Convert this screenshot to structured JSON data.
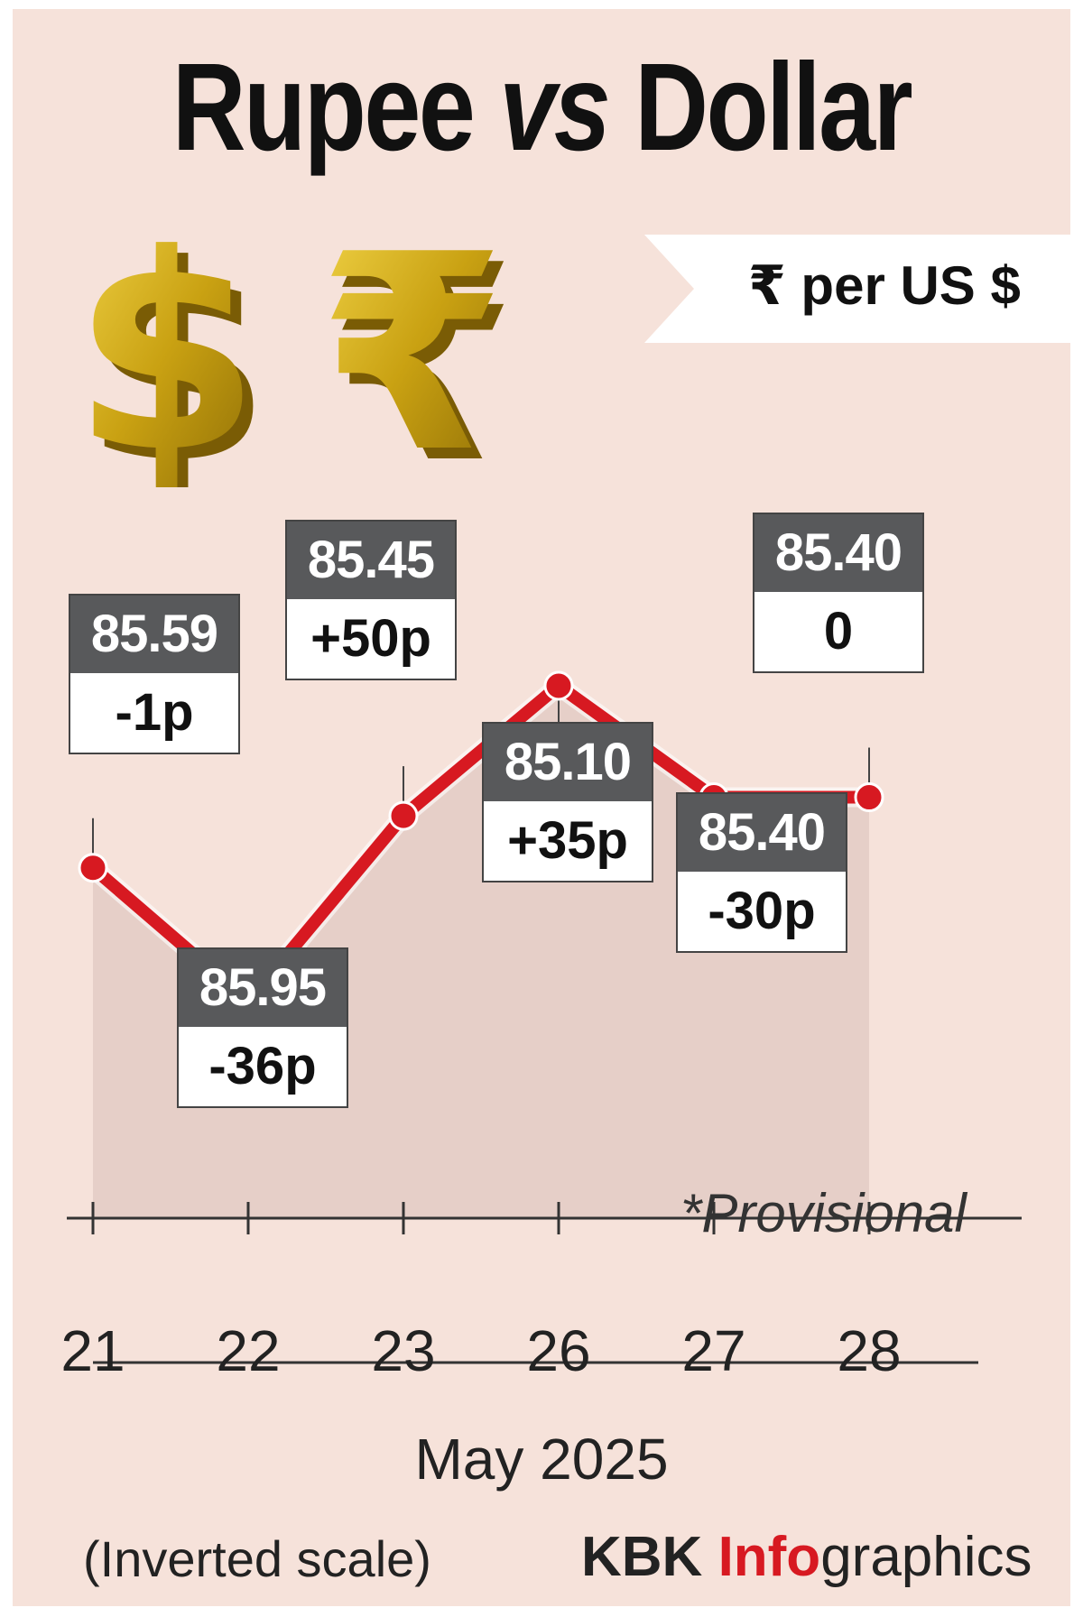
{
  "header": {
    "title_part1": "Rupee",
    "title_part2": "vs",
    "title_part3": "Dollar",
    "unit": "₹  per US $"
  },
  "icons": [
    "dollar-icon",
    "rupee-icon"
  ],
  "colors": {
    "background": "#f6e2da",
    "line": "#d71921",
    "area": "#e6cfc8",
    "label_top": "#58595b",
    "brand_red": "#d71921"
  },
  "chart_data": {
    "type": "line",
    "categories": [
      "21",
      "22",
      "23",
      "26",
      "27",
      "28"
    ],
    "values": [
      85.59,
      85.95,
      85.45,
      85.1,
      85.4,
      85.4
    ],
    "changes": [
      "-1p",
      "-36p",
      "+50p",
      "+35p",
      "-30p",
      "0"
    ],
    "value_labels": [
      "85.59",
      "85.95",
      "85.45",
      "85.10",
      "85.40",
      "85.40"
    ],
    "xlabel": "May 2025",
    "inverted_scale": true,
    "ylim": [
      85.0,
      86.1
    ],
    "note": "*Provisional",
    "scale_note": "(Inverted scale)"
  },
  "footer": {
    "credit_part1": "KBK",
    "credit_part2": "Info",
    "credit_part3": "graphics"
  }
}
